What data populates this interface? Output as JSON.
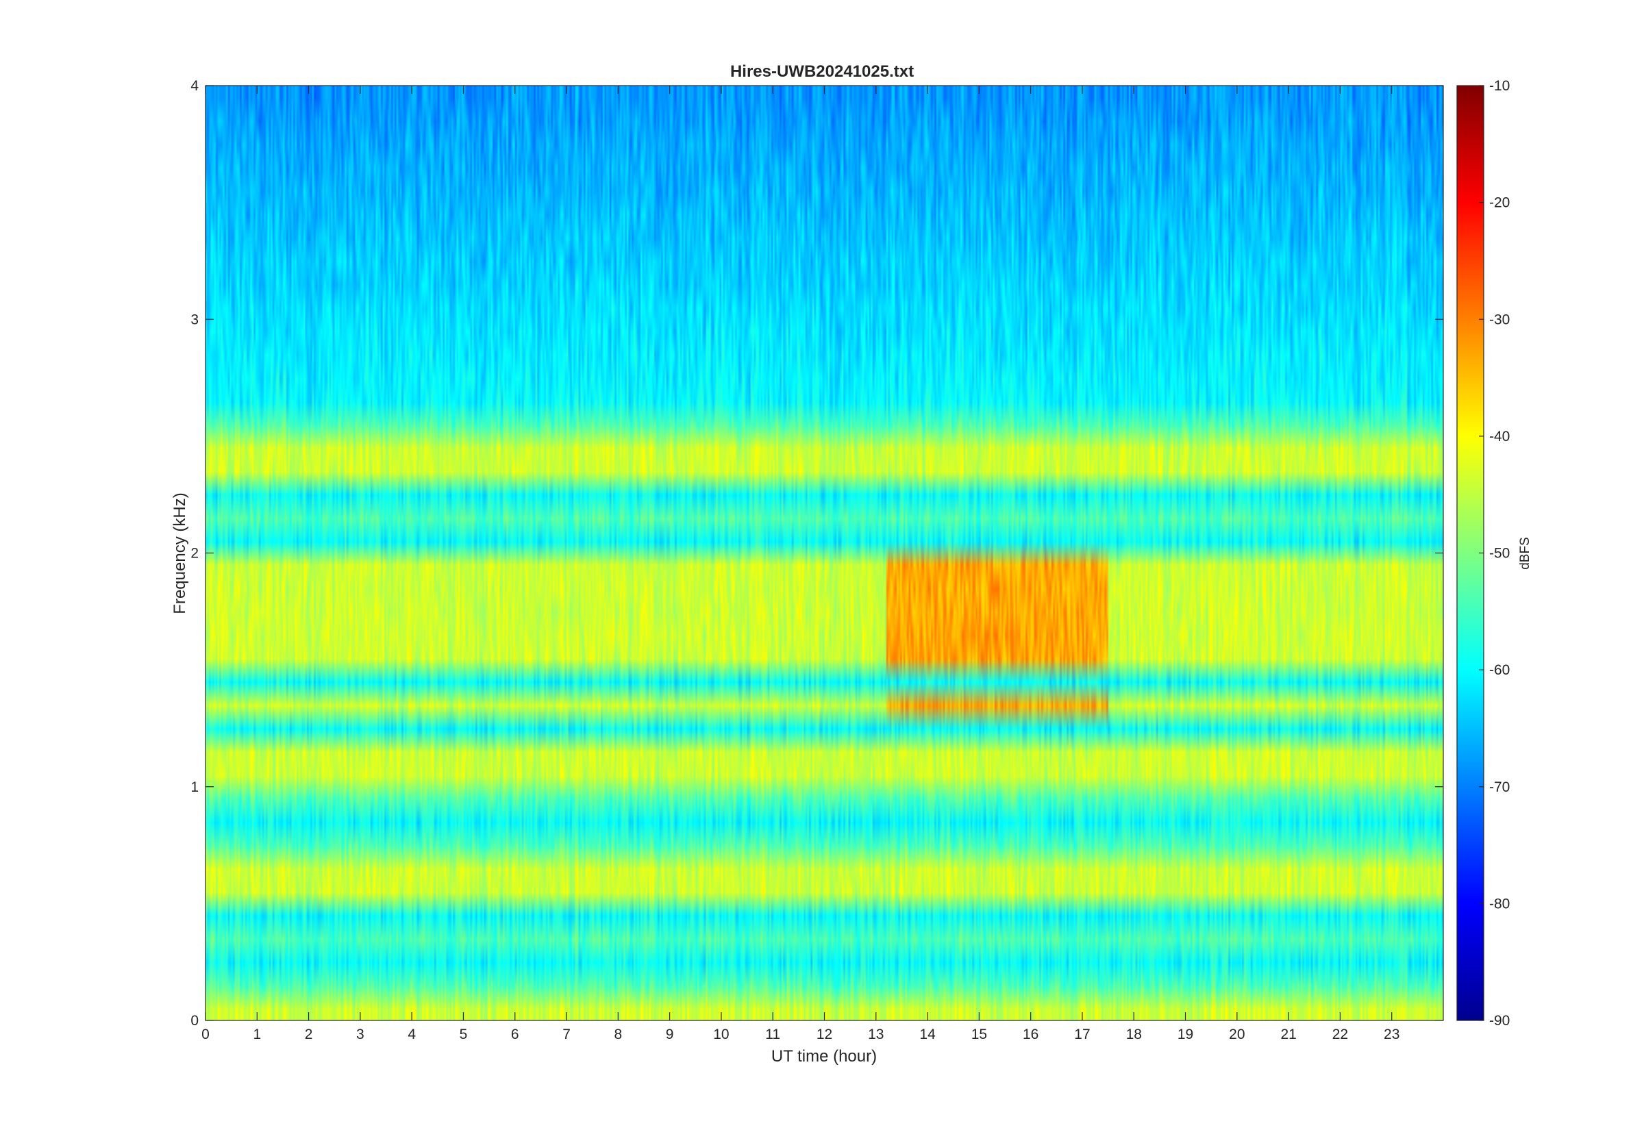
{
  "chart_data": {
    "type": "heatmap",
    "title": "Hires-UWB20241025.txt",
    "xlabel": "UT time (hour)",
    "ylabel": "Frequency (kHz)",
    "xlim": [
      0,
      24
    ],
    "ylim": [
      0,
      4
    ],
    "x_ticks": [
      "0",
      "1",
      "2",
      "3",
      "4",
      "5",
      "6",
      "7",
      "8",
      "9",
      "10",
      "11",
      "12",
      "13",
      "14",
      "15",
      "16",
      "17",
      "18",
      "19",
      "20",
      "21",
      "22",
      "23"
    ],
    "y_ticks": [
      "0",
      "1",
      "2",
      "3",
      "4"
    ],
    "colorbar": {
      "label": "dBFS",
      "colormap": "jet",
      "clim": [
        -90,
        -10
      ],
      "ticks": [
        "-90",
        "-80",
        "-70",
        "-60",
        "-50",
        "-40",
        "-30",
        "-20",
        "-10"
      ]
    },
    "data_summary": {
      "band_spacing_khz": 0.1,
      "background_level_dbfs": -60,
      "strong_bands_khz": [
        0.05,
        0.55,
        0.65,
        1.05,
        1.15,
        1.35,
        1.55,
        1.65,
        1.75,
        1.85,
        1.95,
        2.35,
        2.45
      ],
      "weak_bands_khz": [
        0.1,
        0.2,
        3.0,
        3.3,
        3.5,
        3.7,
        3.9
      ],
      "hot_band_peak_dbfs": -33,
      "hot_time_window_hours": [
        13.2,
        17.5
      ]
    }
  }
}
